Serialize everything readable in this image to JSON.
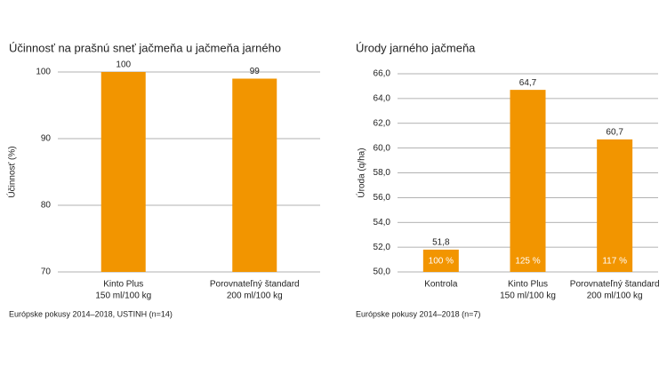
{
  "chart_data": [
    {
      "type": "bar",
      "title": "Účinnosť na prašnú sneť jačmeňa u jačmeňa jarného",
      "y_label": "Účinnosť (%)",
      "categories": [
        [
          "Kinto Plus",
          "150 ml/100 kg"
        ],
        [
          "Porovnateľný štandard",
          "200 ml/100 kg"
        ]
      ],
      "values": [
        100,
        99
      ],
      "color": "#f29500",
      "ylim": [
        70,
        100
      ],
      "yticks": [
        70,
        80,
        90,
        100
      ],
      "grid": true,
      "footnote": "Európske pokusy 2014–2018, USTINH (n=14)"
    },
    {
      "type": "bar",
      "title": "Úrody jarného jačmeňa",
      "y_label": "Úroda (q/ha)",
      "categories": [
        [
          "Kontrola"
        ],
        [
          "Kinto Plus",
          "150 ml/100 kg"
        ],
        [
          "Porovnateľný štandard",
          "200 ml/100 kg"
        ]
      ],
      "values": [
        51.8,
        64.7,
        60.7
      ],
      "value_labels": [
        "51,8",
        "64,7",
        "60,7"
      ],
      "inner_labels": [
        "100 %",
        "125 %",
        "117 %"
      ],
      "color": "#f29500",
      "ylim": [
        50,
        66
      ],
      "yticks": [
        {
          "value": 50,
          "label": "50,0"
        },
        {
          "value": 52,
          "label": "52,0"
        },
        {
          "value": 54,
          "label": "54,0"
        },
        {
          "value": 56,
          "label": "56,0"
        },
        {
          "value": 58,
          "label": "58,0"
        },
        {
          "value": 60,
          "label": "60,0"
        },
        {
          "value": 62,
          "label": "62,0"
        },
        {
          "value": 64,
          "label": "64,0"
        },
        {
          "value": 66,
          "label": "66,0"
        }
      ],
      "grid": true,
      "footnote": "Európske pokusy 2014–2018 (n=7)"
    }
  ]
}
